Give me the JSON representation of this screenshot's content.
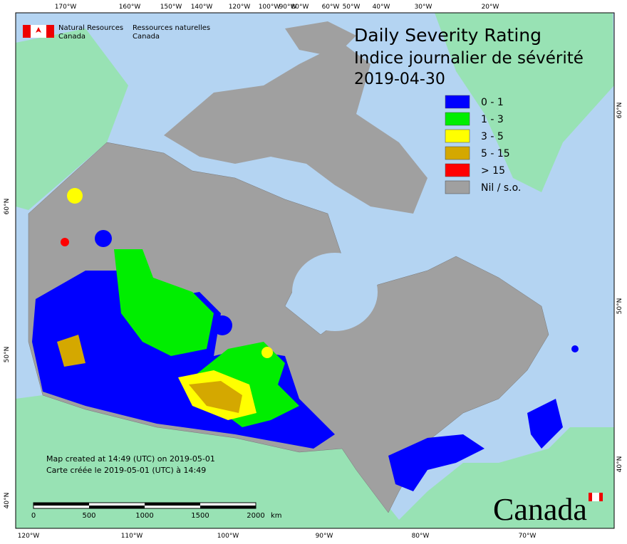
{
  "header": {
    "agency_en": [
      "Natural Resources",
      "Canada"
    ],
    "agency_fr": [
      "Ressources naturelles",
      "Canada"
    ]
  },
  "title": {
    "lines": [
      "Daily Severity Rating",
      "Indice journalier de sévérité",
      "2019-04-30"
    ]
  },
  "legend": [
    {
      "label": "0 - 1",
      "color": "#0000ff"
    },
    {
      "label": "1 - 3",
      "color": "#00ee00"
    },
    {
      "label": "3 - 5",
      "color": "#ffff00"
    },
    {
      "label": "5 - 15",
      "color": "#d4a800"
    },
    {
      "label": "> 15",
      "color": "#ff0000"
    },
    {
      "label": "Nil / s.o.",
      "color": "#a0a0a0"
    }
  ],
  "graticule": {
    "top": [
      "170°W",
      "160°W",
      "150°W",
      "140°W",
      "120°W",
      "100°W",
      "90°W",
      "80°W",
      "60°W",
      "50°W",
      "40°W",
      "30°W",
      "20°W"
    ],
    "bottom": [
      "120°W",
      "110°W",
      "100°W",
      "90°W",
      "80°W",
      "70°W"
    ],
    "left": [
      "60°N",
      "50°N",
      "40°N"
    ],
    "right": [
      "60°N",
      "50°N",
      "40°N"
    ]
  },
  "footer": {
    "created_en": "Map created at 14:49 (UTC) on 2019-05-01",
    "created_fr": "Carte créée le 2019-05-01 (UTC) à 14:49"
  },
  "scale": {
    "labels": [
      "0",
      "500",
      "1000",
      "1500",
      "2000"
    ],
    "unit": "km"
  },
  "wordmark": "Canada"
}
